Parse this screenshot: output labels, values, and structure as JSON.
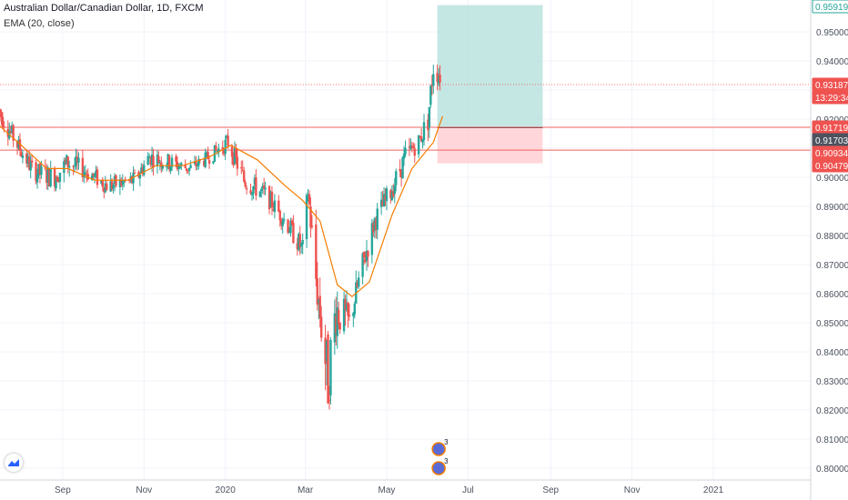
{
  "header": {
    "title": "Australian Dollar/Canadian Dollar, 1D, FXCM",
    "indicator": "EMA (20, close)"
  },
  "colors": {
    "up": "#26a69a",
    "down": "#ef5350",
    "ema": "#f57c00",
    "target_zone": "#b2dfdb",
    "stop_zone": "#ffcdd2",
    "grid": "#f0f3fa",
    "axis_text": "#4c525e"
  },
  "chart_data": {
    "type": "candlestick",
    "symbol": "Australian Dollar/Canadian Dollar",
    "interval": "1D",
    "source": "FXCM",
    "indicator": {
      "name": "EMA",
      "length": 20,
      "source": "close"
    },
    "y_axis": {
      "ticks": [
        "0.95000",
        "0.94000",
        "0.93000",
        "0.92000",
        "0.91000",
        "0.90000",
        "0.89000",
        "0.88000",
        "0.87000",
        "0.86000",
        "0.85000",
        "0.84000",
        "0.83000",
        "0.82000",
        "0.81000",
        "0.80000"
      ],
      "range": [
        0.795,
        0.96
      ]
    },
    "x_axis": {
      "ticks": [
        "Sep",
        "Nov",
        "2020",
        "Mar",
        "May",
        "Jul",
        "Sep",
        "Nov",
        "2021"
      ],
      "range": [
        "2019-07-16",
        "2021-03-15"
      ]
    },
    "price_labels": [
      {
        "value": "0.95919",
        "kind": "target"
      },
      {
        "value": "0.93187",
        "kind": "last_price"
      },
      {
        "value": "13:29:34",
        "kind": "countdown"
      },
      {
        "value": "0.91719",
        "kind": "line"
      },
      {
        "value": "0.91703",
        "kind": "entry"
      },
      {
        "value": "0.90934",
        "kind": "line"
      },
      {
        "value": "0.90479",
        "kind": "stop"
      }
    ],
    "horizontal_lines": [
      0.91719,
      0.90934,
      0.93187
    ],
    "position": {
      "type": "long",
      "entry": 0.91703,
      "target": 0.95919,
      "stop": 0.90479,
      "start": "2020-06-08",
      "end": "2020-08-26"
    },
    "ema_path": [
      [
        "2019-07-15",
        0.918
      ],
      [
        "2019-08-01",
        0.911
      ],
      [
        "2019-08-20",
        0.903
      ],
      [
        "2019-09-05",
        0.903
      ],
      [
        "2019-09-25",
        0.899
      ],
      [
        "2019-10-20",
        0.899
      ],
      [
        "2019-11-10",
        0.904
      ],
      [
        "2019-11-30",
        0.904
      ],
      [
        "2019-12-20",
        0.907
      ],
      [
        "2020-01-05",
        0.911
      ],
      [
        "2020-01-25",
        0.906
      ],
      [
        "2020-02-15",
        0.897
      ],
      [
        "2020-02-28",
        0.892
      ],
      [
        "2020-03-12",
        0.885
      ],
      [
        "2020-03-25",
        0.863
      ],
      [
        "2020-04-05",
        0.859
      ],
      [
        "2020-04-18",
        0.864
      ],
      [
        "2020-05-05",
        0.887
      ],
      [
        "2020-05-20",
        0.903
      ],
      [
        "2020-06-05",
        0.912
      ],
      [
        "2020-06-12",
        0.921
      ]
    ],
    "candle_anchors": [
      [
        "2019-07-15",
        0.923,
        0.005
      ],
      [
        "2019-07-28",
        0.912,
        0.004
      ],
      [
        "2019-08-10",
        0.902,
        0.004
      ],
      [
        "2019-08-25",
        0.9,
        0.005
      ],
      [
        "2019-09-05",
        0.905,
        0.005
      ],
      [
        "2019-09-15",
        0.903,
        0.004
      ],
      [
        "2019-10-05",
        0.897,
        0.004
      ],
      [
        "2019-10-25",
        0.899,
        0.004
      ],
      [
        "2019-11-05",
        0.907,
        0.004
      ],
      [
        "2019-11-20",
        0.905,
        0.004
      ],
      [
        "2019-12-05",
        0.903,
        0.003
      ],
      [
        "2019-12-20",
        0.907,
        0.003
      ],
      [
        "2020-01-03",
        0.912,
        0.004
      ],
      [
        "2020-01-15",
        0.899,
        0.005
      ],
      [
        "2020-01-31",
        0.894,
        0.004
      ],
      [
        "2020-02-15",
        0.885,
        0.004
      ],
      [
        "2020-02-28",
        0.875,
        0.005
      ],
      [
        "2020-03-03",
        0.895,
        0.006
      ],
      [
        "2020-03-09",
        0.865,
        0.009
      ],
      [
        "2020-03-18",
        0.83,
        0.015
      ],
      [
        "2020-03-24",
        0.855,
        0.012
      ],
      [
        "2020-04-03",
        0.85,
        0.006
      ],
      [
        "2020-04-12",
        0.868,
        0.006
      ],
      [
        "2020-04-22",
        0.885,
        0.005
      ],
      [
        "2020-05-04",
        0.895,
        0.005
      ],
      [
        "2020-05-15",
        0.907,
        0.005
      ],
      [
        "2020-05-26",
        0.913,
        0.004
      ],
      [
        "2020-06-01",
        0.92,
        0.006
      ],
      [
        "2020-06-05",
        0.938,
        0.006
      ],
      [
        "2020-06-10",
        0.935,
        0.005
      ]
    ],
    "event_markers": [
      {
        "date": "2020-06-09",
        "label": "3"
      },
      {
        "date": "2020-06-09",
        "label": "3"
      }
    ]
  }
}
